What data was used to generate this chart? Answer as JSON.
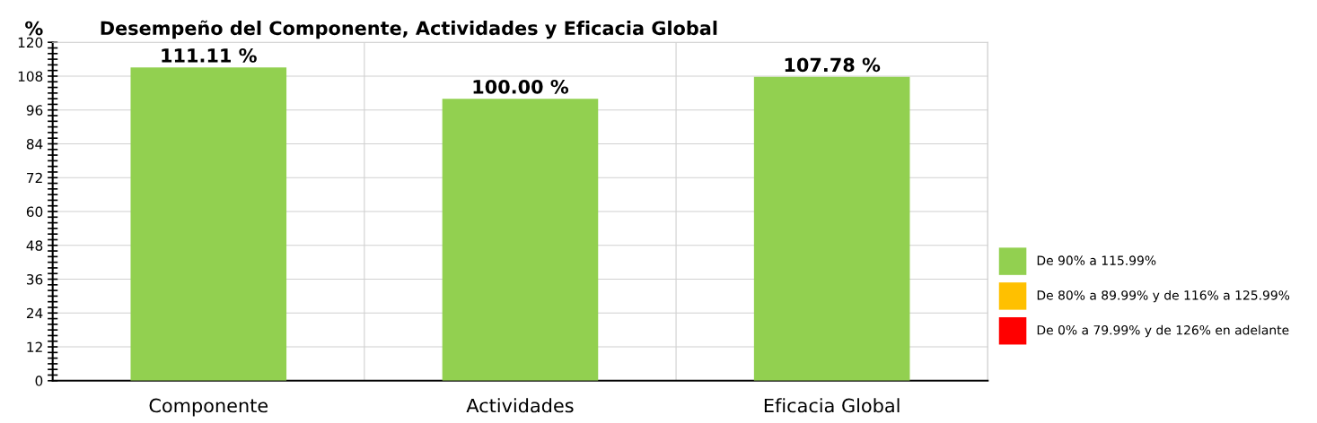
{
  "chart_data": {
    "type": "bar",
    "title": "Desempeño del Componente, Actividades y Eficacia Global",
    "ylabel": "%",
    "categories": [
      "Componente",
      "Actividades",
      "Eficacia Global"
    ],
    "series": [
      {
        "name": "De 90% a 115.99%",
        "color": "#92d050",
        "values": [
          111.11,
          100.0,
          107.78
        ],
        "value_labels": [
          "111.11 %",
          "100.00 %",
          "107.78 %"
        ]
      },
      {
        "name": "De 80% a 89.99% y de 116% a 125.99%",
        "color": "#ffc000",
        "values": [
          null,
          null,
          null
        ]
      },
      {
        "name": "De 0% a 79.99% y de 126% en adelante",
        "color": "#ff0000",
        "values": [
          null,
          null,
          null
        ]
      }
    ],
    "ylim": [
      0,
      120
    ],
    "yticks": [
      0,
      12,
      24,
      36,
      48,
      60,
      72,
      84,
      96,
      108,
      120
    ],
    "grid": true,
    "legend": "right"
  }
}
